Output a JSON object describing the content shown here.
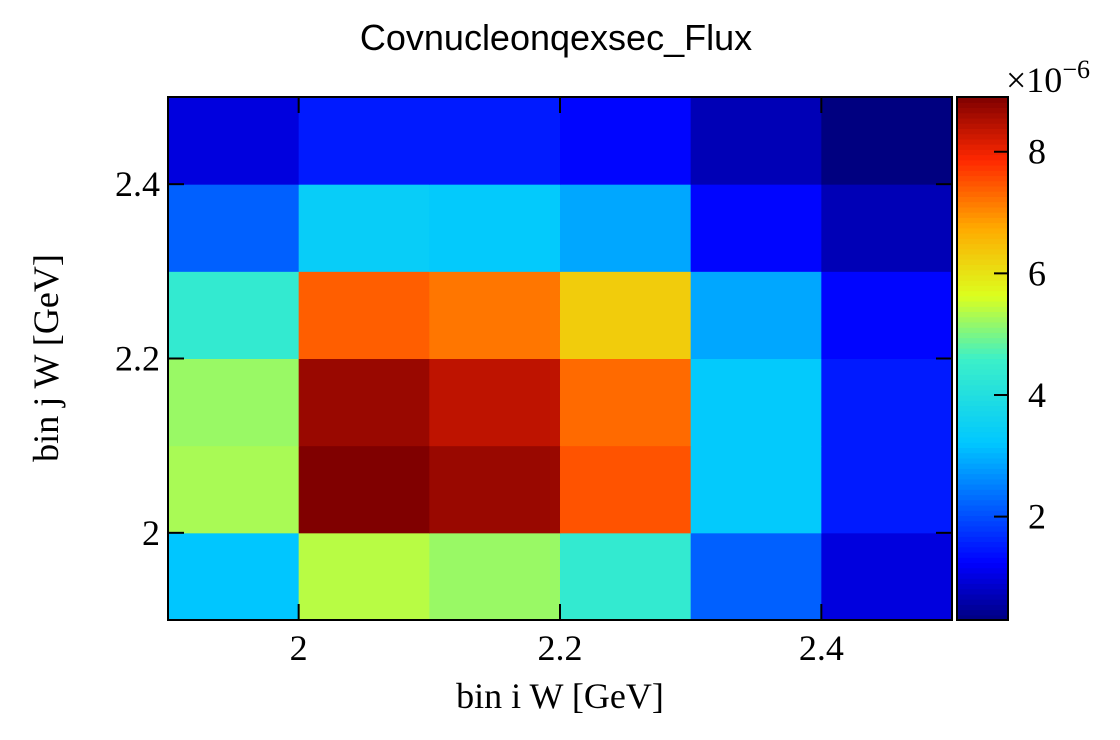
{
  "chart_data": {
    "type": "heatmap",
    "title": "Covnucleonqexsec_Flux",
    "xlabel": "bin i W [GeV]",
    "ylabel": "bin j W [GeV]",
    "x_edges": [
      1.9,
      2.0,
      2.1,
      2.2,
      2.3,
      2.4,
      2.5
    ],
    "y_edges": [
      1.9,
      2.0,
      2.1,
      2.2,
      2.3,
      2.4,
      2.5
    ],
    "xlim": [
      1.9,
      2.5
    ],
    "ylim": [
      1.9,
      2.5
    ],
    "x_ticks": [
      "2",
      "2.2",
      "2.4"
    ],
    "x_tick_values": [
      2.0,
      2.2,
      2.4
    ],
    "y_ticks": [
      "2",
      "2.2",
      "2.4"
    ],
    "y_tick_values": [
      2.0,
      2.2,
      2.4
    ],
    "z_range": [
      0.3,
      8.9
    ],
    "z_ticks": [
      "2",
      "4",
      "6",
      "8"
    ],
    "z_tick_values": [
      2,
      4,
      6,
      8
    ],
    "z_multiplier_base": "×10",
    "z_multiplier_exp": "−6",
    "colormap": "jet",
    "values_rows_bottom_to_top": [
      [
        3.2,
        5.4,
        5.2,
        4.4,
        2.2,
        1.0
      ],
      [
        5.3,
        8.9,
        8.7,
        7.5,
        3.3,
        1.5
      ],
      [
        5.2,
        8.7,
        8.4,
        7.3,
        3.3,
        1.5
      ],
      [
        4.4,
        7.4,
        7.2,
        6.3,
        2.9,
        1.3
      ],
      [
        2.2,
        3.4,
        3.3,
        2.9,
        1.3,
        0.7
      ],
      [
        1.0,
        1.5,
        1.5,
        1.3,
        0.7,
        0.3
      ]
    ]
  }
}
